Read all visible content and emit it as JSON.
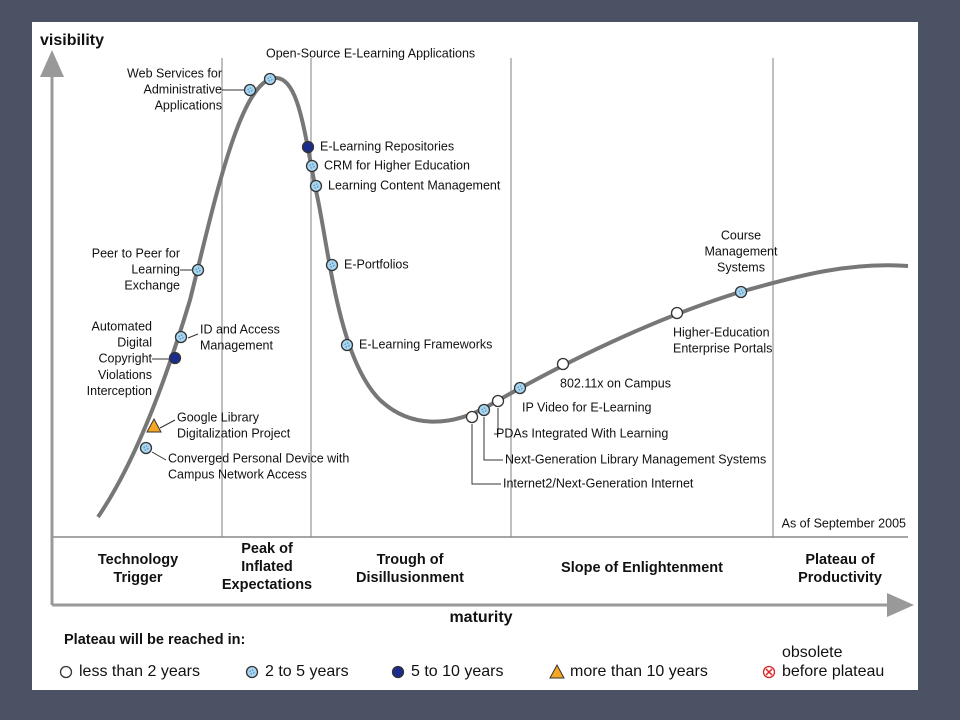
{
  "axes": {
    "y_label": "visibility",
    "x_label": "maturity"
  },
  "note": "As of September 2005",
  "phases": [
    [
      "Technology",
      "Trigger"
    ],
    [
      "Peak of",
      "Inflated",
      "Expectations"
    ],
    [
      "Trough of",
      "Disillusionment"
    ],
    [
      "Slope of Enlightenment"
    ],
    [
      "Plateau of",
      "Productivity"
    ]
  ],
  "technologies": [
    [
      "Open-Source E-Learning Applications"
    ],
    [
      "Web Services for",
      "Administrative",
      "Applications"
    ],
    [
      "E-Learning Repositories"
    ],
    [
      "CRM for Higher Education"
    ],
    [
      "Learning Content Management"
    ],
    [
      "Peer to Peer for",
      "Learning",
      "Exchange"
    ],
    [
      "E-Portfolios"
    ],
    [
      "ID and Access",
      "Management"
    ],
    [
      "Automated",
      "Digital",
      "Copyright",
      "Violations",
      "Interception"
    ],
    [
      "E-Learning Frameworks"
    ],
    [
      "Google Library",
      "Digitalization Project"
    ],
    [
      "Converged Personal Device with",
      "Campus Network Access"
    ],
    [
      "802.11x on Campus"
    ],
    [
      "IP Video for E-Learning"
    ],
    [
      "PDAs Integrated With Learning"
    ],
    [
      "Next-Generation Library Management Systems"
    ],
    [
      "Internet2/Next-Generation Internet"
    ],
    [
      "Higher-Education",
      "Enterprise Portals"
    ],
    [
      "Course",
      "Management",
      "Systems"
    ]
  ],
  "legend": {
    "title": "Plateau will be reached in:",
    "items": [
      [
        "less than 2 years"
      ],
      [
        "2 to 5 years"
      ],
      [
        "5 to 10 years"
      ],
      [
        "more than 10 years"
      ],
      [
        "obsolete",
        "before plateau"
      ]
    ]
  }
}
